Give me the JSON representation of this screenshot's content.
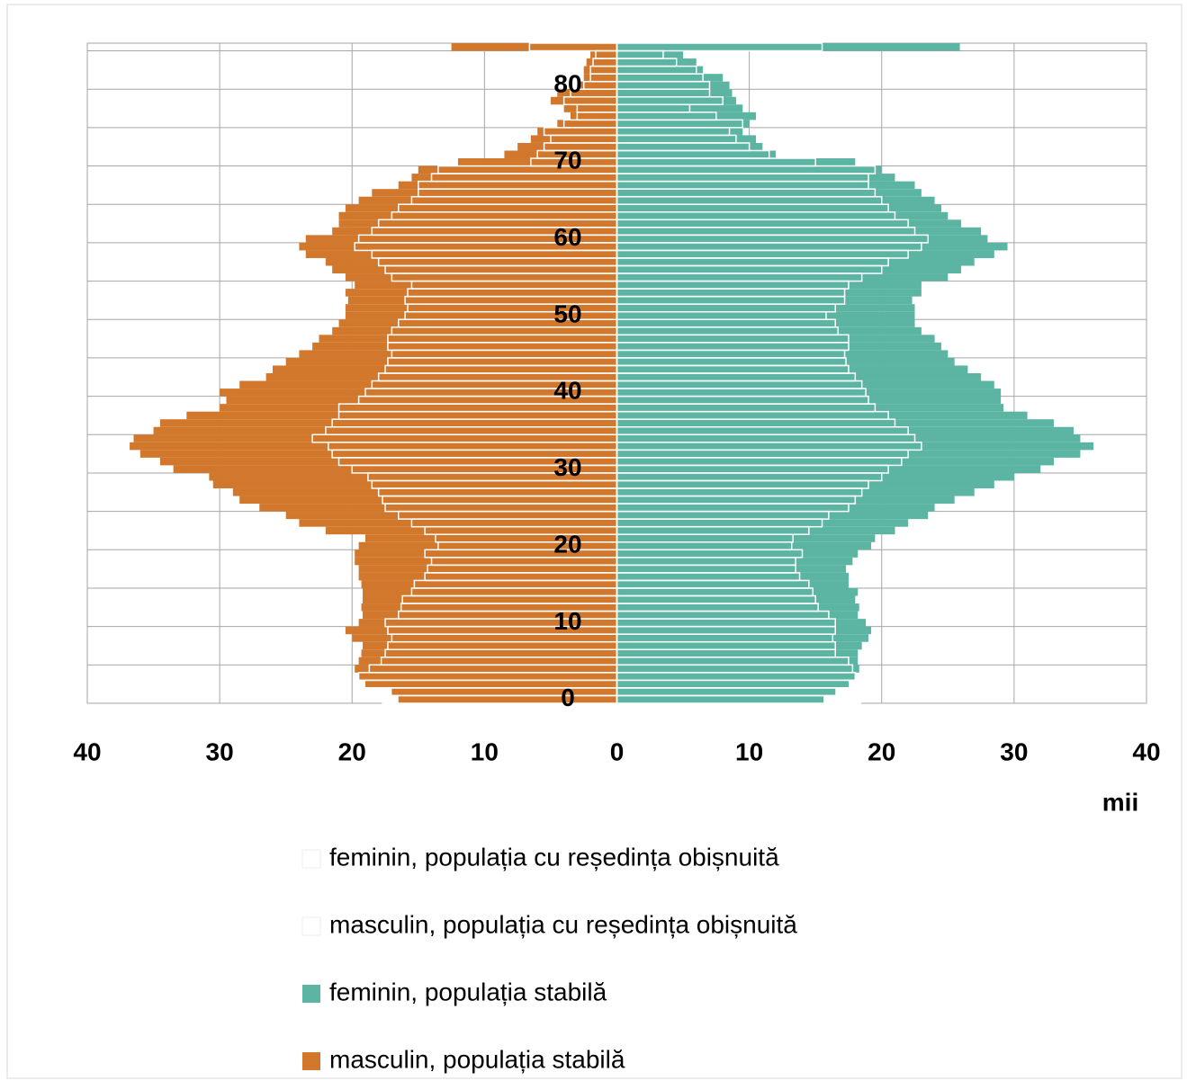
{
  "chart_data": {
    "type": "pyramid",
    "categories": [
      "0",
      null,
      null,
      null,
      null,
      null,
      null,
      null,
      null,
      null,
      "10",
      null,
      null,
      null,
      null,
      null,
      null,
      null,
      null,
      null,
      "20",
      null,
      null,
      null,
      null,
      null,
      null,
      null,
      null,
      null,
      "30",
      null,
      null,
      null,
      null,
      null,
      null,
      null,
      null,
      null,
      "40",
      null,
      null,
      null,
      null,
      null,
      null,
      null,
      null,
      null,
      "50",
      null,
      null,
      null,
      null,
      null,
      null,
      null,
      null,
      null,
      "60",
      null,
      null,
      null,
      null,
      null,
      null,
      null,
      null,
      null,
      "70",
      null,
      null,
      null,
      null,
      null,
      null,
      null,
      null,
      null,
      "80",
      null,
      null,
      null,
      null,
      null
    ],
    "series": [
      {
        "name": "feminin, populația cu reședința obișnuită",
        "color": "#ffffff",
        "values": [
          18.4,
          18.5,
          17.8,
          18,
          17.8,
          17.5,
          16.5,
          16.5,
          16.3,
          16.5,
          16.5,
          16,
          15.2,
          15,
          14.8,
          14.5,
          13.8,
          13.5,
          13.5,
          14,
          13.2,
          13.3,
          14.5,
          15.5,
          16,
          17.5,
          18,
          18.5,
          19,
          20,
          20.5,
          21.5,
          22,
          23,
          22.5,
          22,
          21,
          20.5,
          19.5,
          19,
          18.8,
          18.5,
          18,
          17.5,
          17.3,
          17.2,
          17.5,
          17.5,
          16.7,
          16.5,
          15.8,
          16.5,
          17.2,
          17.2,
          17.5,
          18.5,
          20,
          20.5,
          22,
          23,
          23.5,
          22.5,
          22,
          21,
          20.5,
          20,
          19.5,
          19,
          19,
          19.5,
          15,
          11.5,
          10,
          9,
          8.5,
          9.5,
          7.5,
          5.5,
          8,
          7,
          7,
          6.5,
          6,
          4.5,
          3.5,
          15.5
        ]
      },
      {
        "name": "masculin, populația cu reședința obișnuită",
        "color": "#ffffff",
        "values": [
          -17.7,
          -19.5,
          -19.8,
          -19.5,
          -18.7,
          -17.8,
          -17.5,
          -17.3,
          -17,
          -17.3,
          -17.5,
          -16.5,
          -16.3,
          -16.2,
          -15.5,
          -15.3,
          -14.5,
          -14.3,
          -14,
          -14.5,
          -13.5,
          -13.7,
          -14.5,
          -15.5,
          -16.5,
          -17.5,
          -17.7,
          -18,
          -18.5,
          -18.8,
          -20,
          -21,
          -21.5,
          -21.8,
          -23,
          -22,
          -21.5,
          -21,
          -21,
          -19.5,
          -19,
          -18.5,
          -18,
          -17.5,
          -17.3,
          -17,
          -17.3,
          -17.3,
          -17,
          -16.5,
          -16,
          -15.8,
          -16,
          -15.8,
          -15.5,
          -17,
          -17.5,
          -18,
          -18.5,
          -19.8,
          -19.5,
          -18.5,
          -18,
          -17,
          -16.5,
          -15.5,
          -15,
          -15,
          -14,
          -13.5,
          -6.5,
          -6,
          -5.5,
          -5,
          -5.5,
          -4,
          -3,
          -3,
          -4,
          -3.5,
          -2.5,
          -2,
          -2,
          -1.8,
          -1.6,
          -6.6
        ]
      },
      {
        "name": "feminin, populația stabilă",
        "color": "#5bb5a2",
        "values": [
          15.6,
          16.5,
          17.5,
          18,
          18.3,
          18.2,
          18.2,
          18.5,
          19,
          19.2,
          18.8,
          18.2,
          18.3,
          18,
          18.2,
          17.5,
          17.5,
          17.3,
          17.8,
          18.2,
          19.2,
          19.5,
          21,
          22,
          23.5,
          24,
          25.5,
          27,
          28.5,
          30,
          32,
          33,
          35,
          36,
          35,
          34.5,
          33,
          31,
          29.2,
          29,
          29,
          28.5,
          27.5,
          26.5,
          25.5,
          25,
          24.5,
          24,
          23,
          22.5,
          22.5,
          22.5,
          22.3,
          23,
          23,
          25,
          26,
          27,
          28.5,
          29.5,
          28,
          27.5,
          26,
          25,
          24.5,
          24,
          23,
          22.5,
          21,
          20,
          18,
          12,
          11,
          10.5,
          9.5,
          10,
          10.5,
          9.5,
          9,
          8.7,
          8.5,
          8,
          6.5,
          6,
          5,
          25.9
        ]
      },
      {
        "name": "masculin, populația stabilă",
        "color": "#d2782d",
        "values": [
          -16.5,
          -17,
          -19,
          -19.5,
          -19.8,
          -19.5,
          -19.3,
          -19.2,
          -20,
          -20.5,
          -19.5,
          -19.2,
          -19.3,
          -19.2,
          -19.2,
          -19.3,
          -19.5,
          -19.5,
          -19.8,
          -19.8,
          -19.5,
          -19,
          -22,
          -24,
          -25,
          -27,
          -28.5,
          -29,
          -30.5,
          -30.8,
          -33.5,
          -34.5,
          -36,
          -36.8,
          -36.5,
          -35,
          -34.5,
          -32.5,
          -30,
          -29.5,
          -30,
          -28.5,
          -26.5,
          -26,
          -25,
          -24,
          -23,
          -22.5,
          -21.5,
          -21,
          -20.5,
          -20.5,
          -20.3,
          -20.5,
          -19.8,
          -20.5,
          -21.5,
          -22,
          -23.5,
          -24,
          -23.5,
          -21.5,
          -21,
          -21,
          -20.5,
          -19.5,
          -18.5,
          -16.5,
          -15.5,
          -15,
          -12,
          -8.5,
          -7.5,
          -6.5,
          -6,
          -4.5,
          -3.5,
          -4,
          -5,
          -4.5,
          -3,
          -2.5,
          -2.5,
          -2.3,
          -2,
          -12.5
        ]
      }
    ],
    "xlim": [
      -40,
      40
    ],
    "xticks": [
      {
        "value": -40,
        "label": "40"
      },
      {
        "value": -30,
        "label": "30"
      },
      {
        "value": -20,
        "label": "20"
      },
      {
        "value": -10,
        "label": "10"
      },
      0,
      10,
      20,
      30,
      40
    ],
    "x_label": "mii",
    "grid": true
  }
}
